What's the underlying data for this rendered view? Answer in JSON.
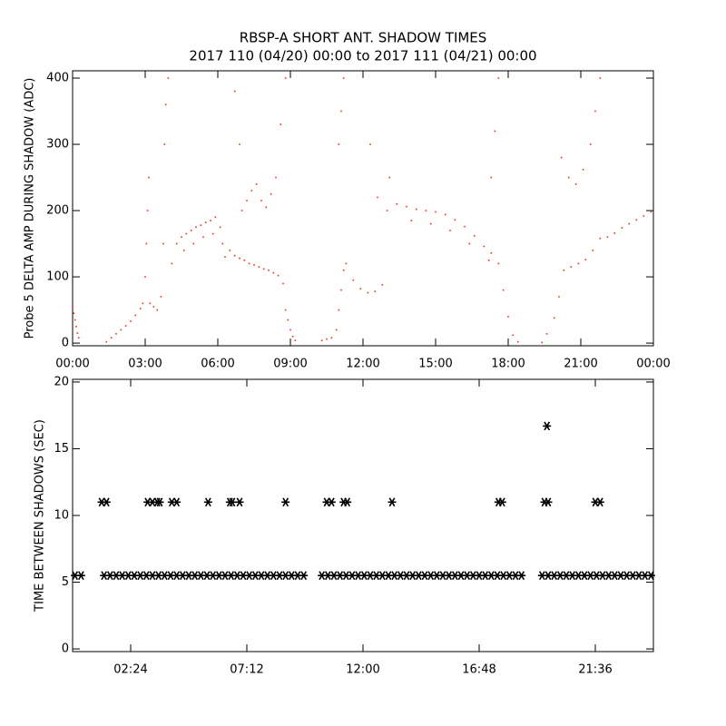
{
  "chart_data": [
    {
      "type": "scatter",
      "title": "RBSP-A SHORT ANT. SHADOW TIMES",
      "subtitle": "2017 110 (04/20) 00:00 to 2017 111 (04/21) 00:00",
      "ylabel": "Probe 5 DELTA AMP DURING SHADOW (ADC)",
      "color": "#e8341c",
      "marker": "dot",
      "xlim": [
        0,
        24
      ],
      "ylim": [
        -4,
        411
      ],
      "xticks": [
        {
          "value": 0,
          "label": "00:00"
        },
        {
          "value": 3,
          "label": "03:00"
        },
        {
          "value": 6,
          "label": "06:00"
        },
        {
          "value": 9,
          "label": "09:00"
        },
        {
          "value": 12,
          "label": "12:00"
        },
        {
          "value": 15,
          "label": "15:00"
        },
        {
          "value": 18,
          "label": "18:00"
        },
        {
          "value": 21,
          "label": "21:00"
        },
        {
          "value": 24,
          "label": "00:00"
        }
      ],
      "yticks": [
        0,
        100,
        200,
        300,
        400
      ],
      "x": [
        0.0,
        0.05,
        0.1,
        0.15,
        0.2,
        0.25,
        1.4,
        1.6,
        1.8,
        2.0,
        2.2,
        2.4,
        2.6,
        2.8,
        2.9,
        3.0,
        3.05,
        3.1,
        3.15,
        3.2,
        3.35,
        3.5,
        3.65,
        3.75,
        3.8,
        3.85,
        3.95,
        4.1,
        4.3,
        4.5,
        4.7,
        4.9,
        5.1,
        5.3,
        5.5,
        5.7,
        5.9,
        6.1,
        6.2,
        4.6,
        5.0,
        5.4,
        5.8,
        6.3,
        6.5,
        6.7,
        6.9,
        7.1,
        7.3,
        7.5,
        7.7,
        7.9,
        8.1,
        8.3,
        8.5,
        8.7,
        8.8,
        8.9,
        9.0,
        9.1,
        9.2,
        6.7,
        6.9,
        7.0,
        7.2,
        7.4,
        7.6,
        7.8,
        8.0,
        8.2,
        8.4,
        8.6,
        8.8,
        10.3,
        10.5,
        10.7,
        10.9,
        11.0,
        11.1,
        11.2,
        11.3,
        11.0,
        11.1,
        11.2,
        11.6,
        11.9,
        12.2,
        12.5,
        12.8,
        12.3,
        12.6,
        13.0,
        13.1,
        13.4,
        13.8,
        14.2,
        14.6,
        15.0,
        15.4,
        15.8,
        16.2,
        16.6,
        17.0,
        17.3,
        17.6,
        17.8,
        18.0,
        18.2,
        18.4,
        14.0,
        14.8,
        15.6,
        16.4,
        17.2,
        17.3,
        17.45,
        17.6,
        19.4,
        19.6,
        19.9,
        20.1,
        20.3,
        20.6,
        20.9,
        21.2,
        21.5,
        21.8,
        22.1,
        22.4,
        22.7,
        23.0,
        23.3,
        23.6,
        23.9,
        20.2,
        20.5,
        20.8,
        21.1,
        21.4,
        21.6,
        21.8
      ],
      "values": [
        55,
        45,
        35,
        25,
        15,
        8,
        2,
        8,
        14,
        20,
        26,
        33,
        42,
        52,
        60,
        100,
        150,
        200,
        250,
        60,
        55,
        50,
        70,
        150,
        300,
        360,
        400,
        120,
        150,
        160,
        165,
        170,
        175,
        178,
        182,
        185,
        190,
        175,
        150,
        140,
        150,
        160,
        165,
        130,
        140,
        132,
        128,
        125,
        120,
        118,
        115,
        112,
        110,
        106,
        102,
        90,
        50,
        35,
        20,
        10,
        4,
        380,
        300,
        200,
        215,
        230,
        240,
        215,
        205,
        225,
        250,
        330,
        400,
        4,
        6,
        8,
        20,
        50,
        80,
        110,
        120,
        300,
        350,
        400,
        95,
        82,
        76,
        78,
        88,
        300,
        220,
        200,
        250,
        210,
        206,
        202,
        200,
        198,
        194,
        186,
        176,
        162,
        146,
        136,
        120,
        80,
        40,
        12,
        2,
        185,
        180,
        170,
        150,
        125,
        250,
        320,
        400,
        1,
        14,
        38,
        70,
        110,
        115,
        120,
        126,
        140,
        158,
        160,
        166,
        174,
        180,
        186,
        192,
        198,
        280,
        250,
        240,
        262,
        300,
        350,
        400
      ]
    },
    {
      "type": "scatter",
      "ylabel": "TIME BETWEEN SHADOWS (SEC)",
      "color": "#000000",
      "marker": "asterisk",
      "xlim": [
        0,
        24
      ],
      "ylim": [
        -0.2,
        20.2
      ],
      "xticks": [
        {
          "value": 2.4,
          "label": "02:24"
        },
        {
          "value": 7.2,
          "label": "07:12"
        },
        {
          "value": 12,
          "label": "12:00"
        },
        {
          "value": 16.8,
          "label": "16:48"
        },
        {
          "value": 21.6,
          "label": "21:36"
        }
      ],
      "yticks": [
        0,
        5,
        10,
        15,
        20
      ],
      "x": [
        0.1,
        0.35,
        1.3,
        1.55,
        1.8,
        2.05,
        2.3,
        2.55,
        2.8,
        3.05,
        3.3,
        3.55,
        3.8,
        4.05,
        4.3,
        4.55,
        4.8,
        5.05,
        5.3,
        5.55,
        5.8,
        6.05,
        6.3,
        6.55,
        6.8,
        7.05,
        7.3,
        7.55,
        7.8,
        8.05,
        8.3,
        8.55,
        8.8,
        9.05,
        9.3,
        9.55,
        10.3,
        10.55,
        10.8,
        11.05,
        11.3,
        11.55,
        11.8,
        12.05,
        12.3,
        12.55,
        12.8,
        13.05,
        13.3,
        13.55,
        13.8,
        14.05,
        14.3,
        14.55,
        14.8,
        15.05,
        15.3,
        15.55,
        15.8,
        16.05,
        16.3,
        16.55,
        16.8,
        17.05,
        17.3,
        17.55,
        17.8,
        18.05,
        18.3,
        18.55,
        19.4,
        19.65,
        19.9,
        20.15,
        20.4,
        20.65,
        20.9,
        21.15,
        21.4,
        21.65,
        21.9,
        22.15,
        22.4,
        22.65,
        22.9,
        23.15,
        23.4,
        23.65,
        23.9,
        1.2,
        1.4,
        3.1,
        3.3,
        3.5,
        3.6,
        4.1,
        4.3,
        5.6,
        6.5,
        6.6,
        6.9,
        8.8,
        10.5,
        10.7,
        11.2,
        11.35,
        13.2,
        17.6,
        17.75,
        19.5,
        19.65,
        21.6,
        21.8,
        19.6
      ],
      "values": [
        5.5,
        5.5,
        5.5,
        5.5,
        5.5,
        5.5,
        5.5,
        5.5,
        5.5,
        5.5,
        5.5,
        5.5,
        5.5,
        5.5,
        5.5,
        5.5,
        5.5,
        5.5,
        5.5,
        5.5,
        5.5,
        5.5,
        5.5,
        5.5,
        5.5,
        5.5,
        5.5,
        5.5,
        5.5,
        5.5,
        5.5,
        5.5,
        5.5,
        5.5,
        5.5,
        5.5,
        5.5,
        5.5,
        5.5,
        5.5,
        5.5,
        5.5,
        5.5,
        5.5,
        5.5,
        5.5,
        5.5,
        5.5,
        5.5,
        5.5,
        5.5,
        5.5,
        5.5,
        5.5,
        5.5,
        5.5,
        5.5,
        5.5,
        5.5,
        5.5,
        5.5,
        5.5,
        5.5,
        5.5,
        5.5,
        5.5,
        5.5,
        5.5,
        5.5,
        5.5,
        5.5,
        5.5,
        5.5,
        5.5,
        5.5,
        5.5,
        5.5,
        5.5,
        5.5,
        5.5,
        5.5,
        5.5,
        5.5,
        5.5,
        5.5,
        5.5,
        5.5,
        5.5,
        5.5,
        11,
        11,
        11,
        11,
        11,
        11,
        11,
        11,
        11,
        11,
        11,
        11,
        11,
        11,
        11,
        11,
        11,
        11,
        11,
        11,
        11,
        11,
        11,
        11,
        16.7
      ]
    }
  ]
}
